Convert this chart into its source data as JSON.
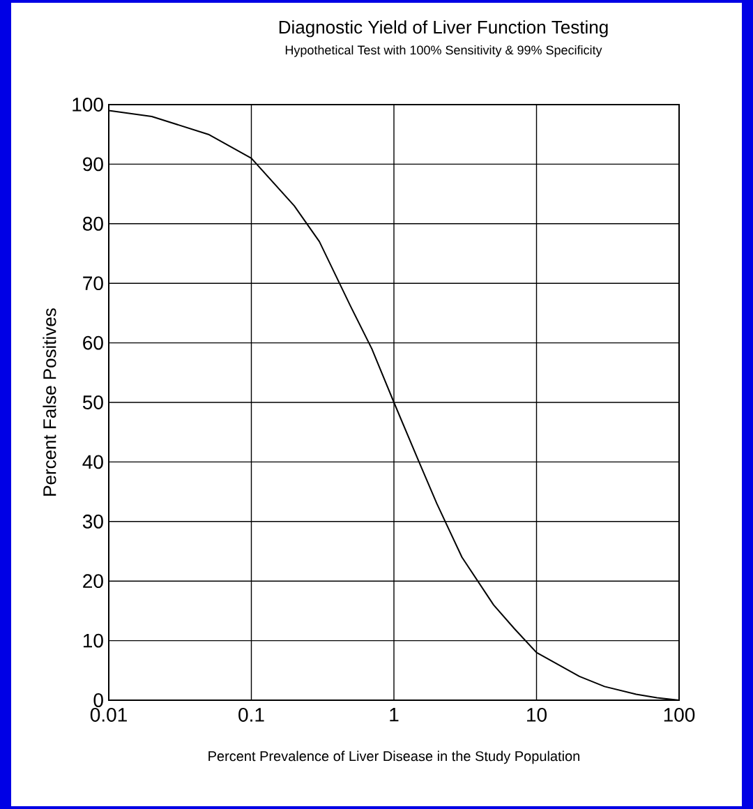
{
  "chart_data": {
    "type": "line",
    "title": "Diagnostic Yield of Liver Function Testing",
    "subtitle": "Hypothetical Test with 100% Sensitivity & 99% Specificity",
    "xlabel": "Percent Prevalence of Liver Disease in the Study Population",
    "ylabel": "Percent False Positives",
    "log": "x",
    "grid": true,
    "marker": "none",
    "line_style": "solid",
    "xlim": [
      0.01,
      100
    ],
    "xticks": [
      0.01,
      0.1,
      1,
      10,
      100
    ],
    "ylim": [
      0,
      100
    ],
    "yticks": [
      0,
      10,
      20,
      30,
      40,
      50,
      60,
      70,
      80,
      90,
      100
    ],
    "series": [
      {
        "color": "#000000",
        "x": [
          0.01,
          0.02,
          0.05,
          0.1,
          0.2,
          0.3,
          0.5,
          0.7,
          1,
          1.5,
          2,
          3,
          5,
          7,
          10,
          20,
          30,
          50,
          70,
          100
        ],
        "values": [
          99,
          98,
          95,
          91,
          83,
          77,
          66,
          59,
          50,
          40,
          33,
          24,
          16,
          12,
          8,
          4,
          2.3,
          1,
          0.4,
          0
        ]
      }
    ]
  }
}
